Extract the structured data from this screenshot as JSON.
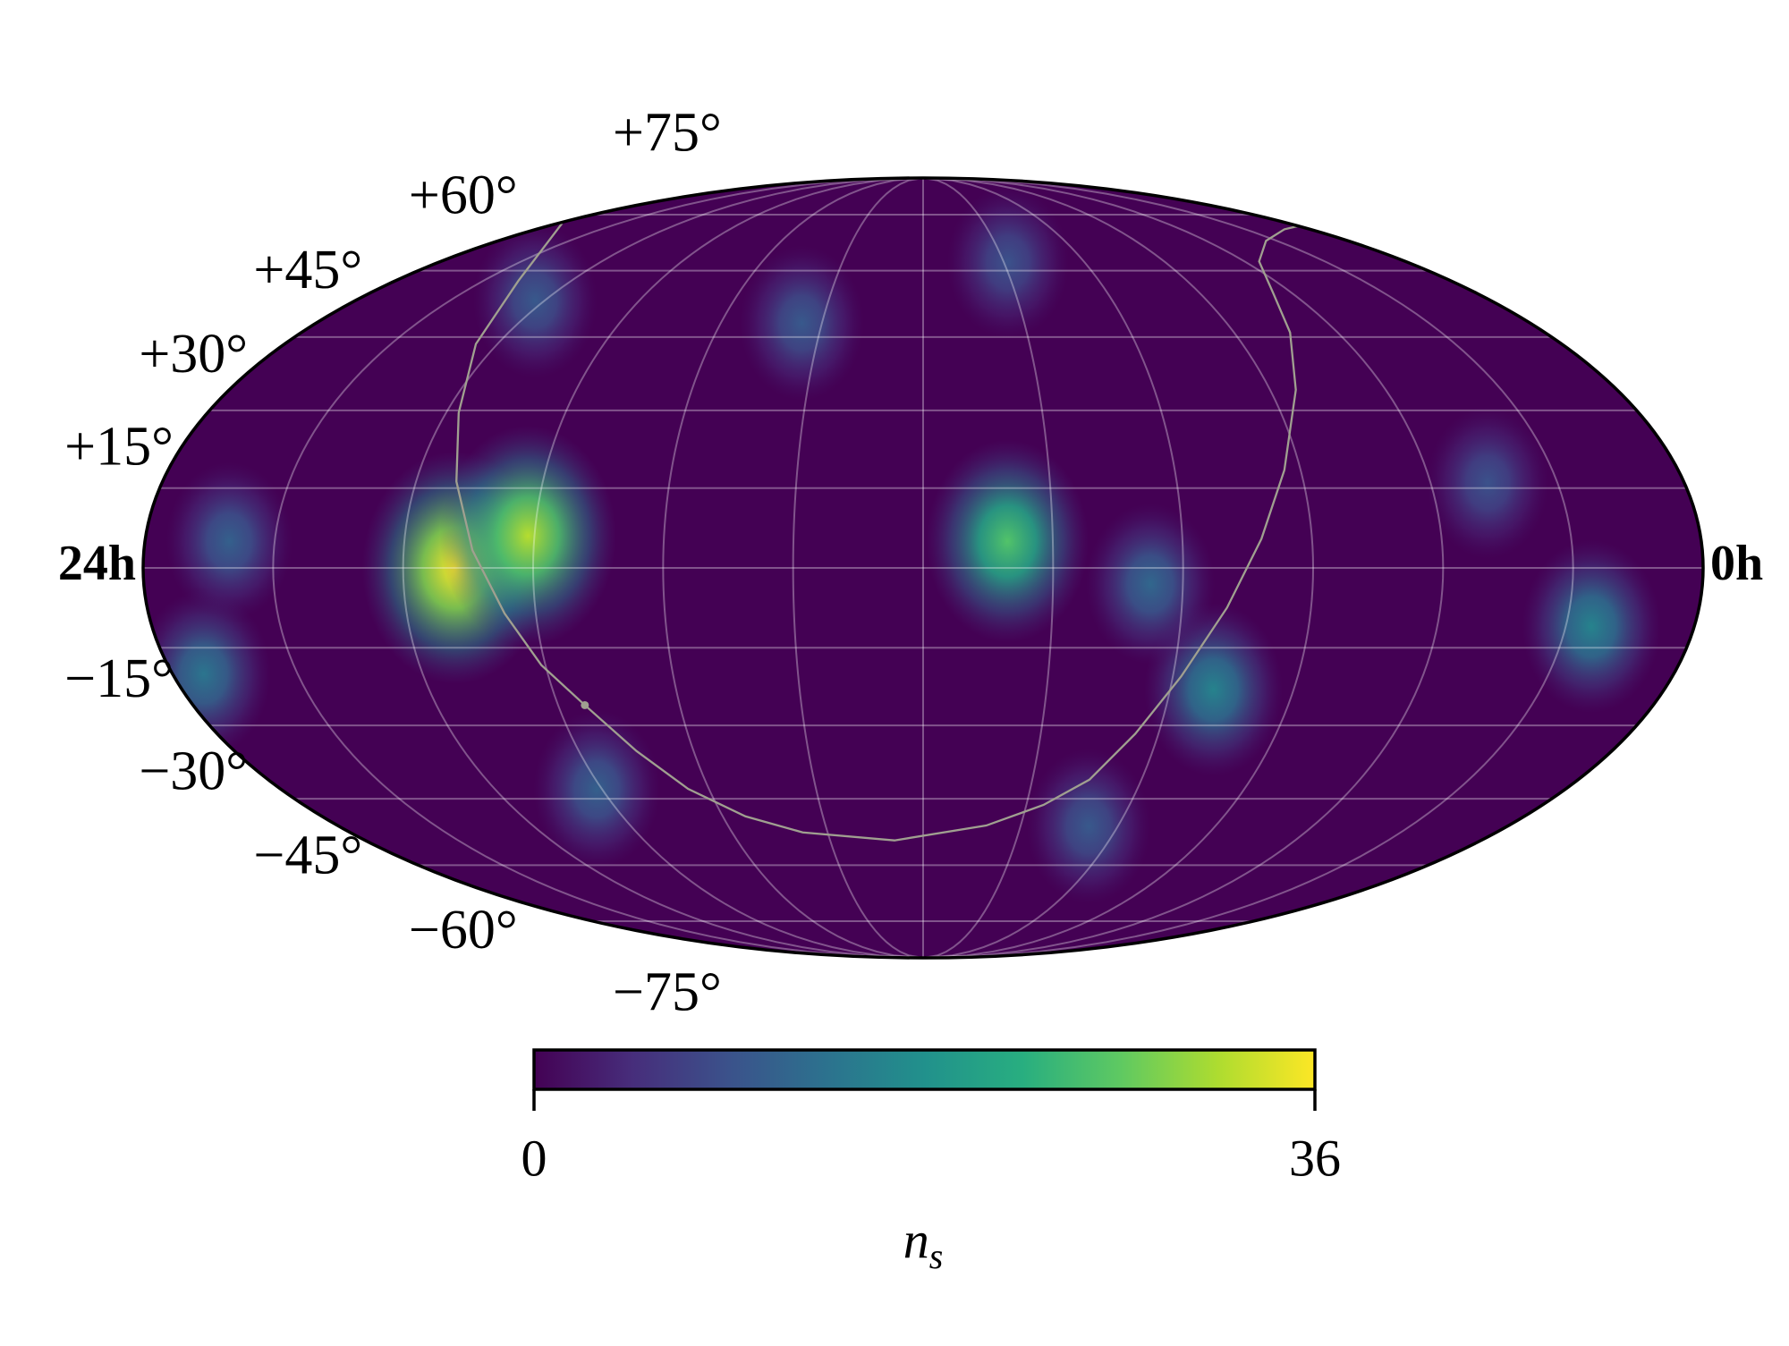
{
  "chart_data": {
    "type": "skymap",
    "projection": "mollweide",
    "colormap": "viridis",
    "ra_ticks": [
      {
        "value": 24,
        "label": "24h"
      },
      {
        "value": 0,
        "label": "0h"
      }
    ],
    "dec_ticks": [
      {
        "value": 75,
        "label": "+75°"
      },
      {
        "value": 60,
        "label": "+60°"
      },
      {
        "value": 45,
        "label": "+45°"
      },
      {
        "value": 30,
        "label": "+30°"
      },
      {
        "value": 15,
        "label": "+15°"
      },
      {
        "value": -15,
        "label": "−15°"
      },
      {
        "value": -30,
        "label": "−30°"
      },
      {
        "value": -45,
        "label": "−45°"
      },
      {
        "value": -60,
        "label": "−60°"
      },
      {
        "value": -75,
        "label": "−75°"
      }
    ],
    "grid": true,
    "hotspots": [
      {
        "ra": 19.2,
        "dec": 0,
        "value": 36
      },
      {
        "ra": 18.1,
        "dec": 6,
        "value": 32
      },
      {
        "ra": 10.7,
        "dec": 5,
        "value": 26
      },
      {
        "ra": 7.3,
        "dec": -23,
        "value": 16
      },
      {
        "ra": 8.5,
        "dec": -3,
        "value": 12
      },
      {
        "ra": 1.6,
        "dec": -11,
        "value": 16
      },
      {
        "ra": 23.5,
        "dec": -20,
        "value": 14
      },
      {
        "ra": 14.4,
        "dec": 48,
        "value": 10
      },
      {
        "ra": 9.9,
        "dec": 62,
        "value": 9
      },
      {
        "ra": 20.2,
        "dec": 53,
        "value": 10
      },
      {
        "ra": 18.1,
        "dec": -43,
        "value": 11
      },
      {
        "ra": 8.6,
        "dec": -51,
        "value": 10
      },
      {
        "ra": 3.1,
        "dec": 16,
        "value": 9
      },
      {
        "ra": 22.7,
        "dec": 5,
        "value": 11
      }
    ],
    "colorbar": {
      "clim": [
        0,
        36
      ],
      "ticks": [
        0,
        36
      ],
      "label": {
        "symbol": "n",
        "subscript": "s"
      }
    }
  }
}
